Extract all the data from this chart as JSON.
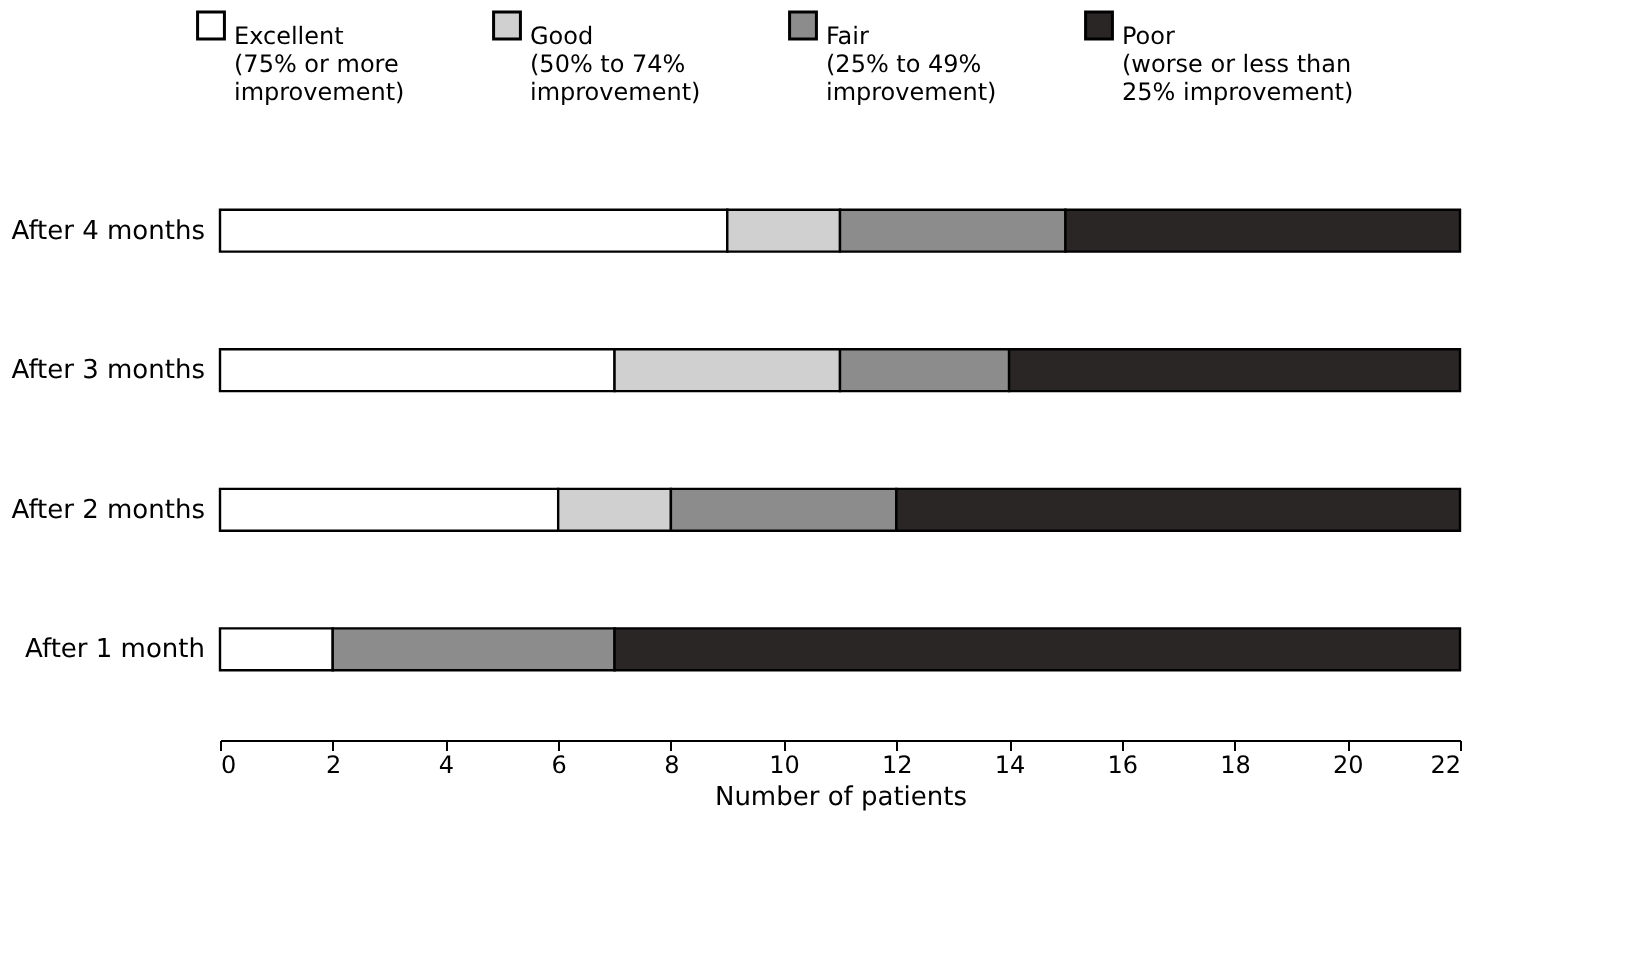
{
  "chart_data": {
    "type": "bar",
    "orientation": "horizontal",
    "stacked": true,
    "xlabel": "Number of patients",
    "categories": [
      "After 4 months",
      "After 3 months",
      "After 2 months",
      "After 1  month"
    ],
    "series": [
      {
        "name": "Excellent\n(75% or more\nimprovement)",
        "color": "#ffffff",
        "values": [
          9,
          7,
          6,
          2
        ]
      },
      {
        "name": "Good\n(50% to 74%\nimprovement)",
        "color": "#d0d0d0",
        "values": [
          2,
          4,
          2,
          null
        ]
      },
      {
        "name": "Fair\n(25% to 49%\nimprovement)",
        "color": "#8c8c8c",
        "values": [
          4,
          3,
          4,
          5
        ]
      },
      {
        "name": "Poor\n(worse or less than\n25% improvement)",
        "color": "#2a2626",
        "values": [
          7,
          8,
          10,
          15
        ]
      }
    ],
    "xlim": [
      0,
      22
    ],
    "xticks": [
      0,
      2,
      4,
      6,
      8,
      10,
      12,
      14,
      16,
      18,
      20,
      22
    ],
    "grid": false,
    "legend": "top"
  }
}
